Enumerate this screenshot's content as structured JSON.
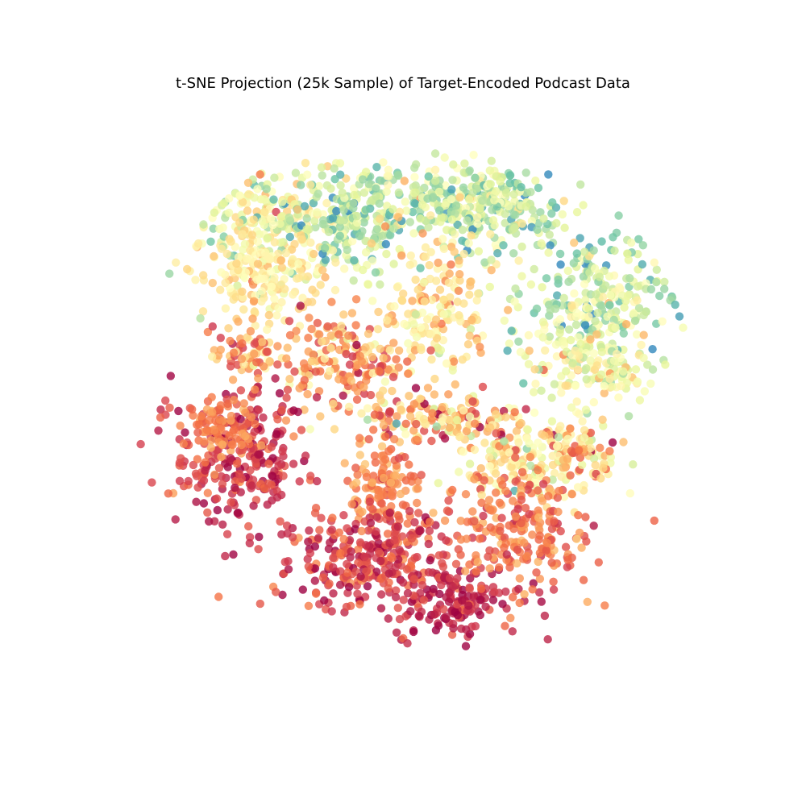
{
  "chart_data": {
    "type": "scatter",
    "title": "t-SNE Projection (25k Sample) of Target-Encoded Podcast Data",
    "xlabel": "",
    "ylabel": "",
    "axes": "off",
    "grid": false,
    "legend": "none",
    "colormap": "Spectral",
    "colormap_stops": [
      "#9e0142",
      "#d53e4f",
      "#f46d43",
      "#fdae61",
      "#fee08b",
      "#ffffbf",
      "#e6f598",
      "#abdda4",
      "#66c2a5",
      "#3288bd"
    ],
    "xlim": [
      -100,
      100
    ],
    "ylim": [
      -100,
      100
    ],
    "clusters": [
      {
        "x": -48,
        "y": 62,
        "sx": 12,
        "sy": 9,
        "n": 220,
        "c_mean": 0.6,
        "c_sd": 0.14
      },
      {
        "x": -22,
        "y": 64,
        "sx": 10,
        "sy": 10,
        "n": 200,
        "c_mean": 0.74,
        "c_sd": 0.13
      },
      {
        "x": 10,
        "y": 72,
        "sx": 12,
        "sy": 6,
        "n": 180,
        "c_mean": 0.68,
        "c_sd": 0.13
      },
      {
        "x": 30,
        "y": 66,
        "sx": 10,
        "sy": 8,
        "n": 170,
        "c_mean": 0.74,
        "c_sd": 0.12
      },
      {
        "x": 62,
        "y": 36,
        "sx": 12,
        "sy": 11,
        "n": 240,
        "c_mean": 0.7,
        "c_sd": 0.14
      },
      {
        "x": 60,
        "y": 15,
        "sx": 12,
        "sy": 7,
        "n": 160,
        "c_mean": 0.58,
        "c_sd": 0.12
      },
      {
        "x": 7,
        "y": 34,
        "sx": 9,
        "sy": 14,
        "n": 180,
        "c_mean": 0.46,
        "c_sd": 0.1
      },
      {
        "x": -52,
        "y": 44,
        "sx": 10,
        "sy": 7,
        "n": 160,
        "c_mean": 0.47,
        "c_sd": 0.08
      },
      {
        "x": -57,
        "y": 18,
        "sx": 6,
        "sy": 5,
        "n": 70,
        "c_mean": 0.3,
        "c_sd": 0.14
      },
      {
        "x": -24,
        "y": 16,
        "sx": 10,
        "sy": 8,
        "n": 170,
        "c_mean": 0.3,
        "c_sd": 0.14
      },
      {
        "x": 10,
        "y": -4,
        "sx": 16,
        "sy": 4,
        "n": 160,
        "c_mean": 0.35,
        "c_sd": 0.18
      },
      {
        "x": 38,
        "y": -19,
        "sx": 11,
        "sy": 6,
        "n": 160,
        "c_mean": 0.48,
        "c_sd": 0.15
      },
      {
        "x": 55,
        "y": -15,
        "sx": 7,
        "sy": 6,
        "n": 80,
        "c_mean": 0.38,
        "c_sd": 0.18
      },
      {
        "x": -60,
        "y": -17,
        "sx": 11,
        "sy": 12,
        "n": 260,
        "c_mean": 0.1,
        "c_sd": 0.08
      },
      {
        "x": -66,
        "y": -6,
        "sx": 6,
        "sy": 5,
        "n": 80,
        "c_mean": 0.26,
        "c_sd": 0.05
      },
      {
        "x": -10,
        "y": -26,
        "sx": 6,
        "sy": 8,
        "n": 120,
        "c_mean": 0.26,
        "c_sd": 0.06
      },
      {
        "x": -17,
        "y": -51,
        "sx": 15,
        "sy": 9,
        "n": 300,
        "c_mean": 0.12,
        "c_sd": 0.08
      },
      {
        "x": 14,
        "y": -66,
        "sx": 11,
        "sy": 6,
        "n": 150,
        "c_mean": 0.07,
        "c_sd": 0.06
      },
      {
        "x": 35,
        "y": -42,
        "sx": 13,
        "sy": 10,
        "n": 220,
        "c_mean": 0.22,
        "c_sd": 0.07
      }
    ]
  }
}
